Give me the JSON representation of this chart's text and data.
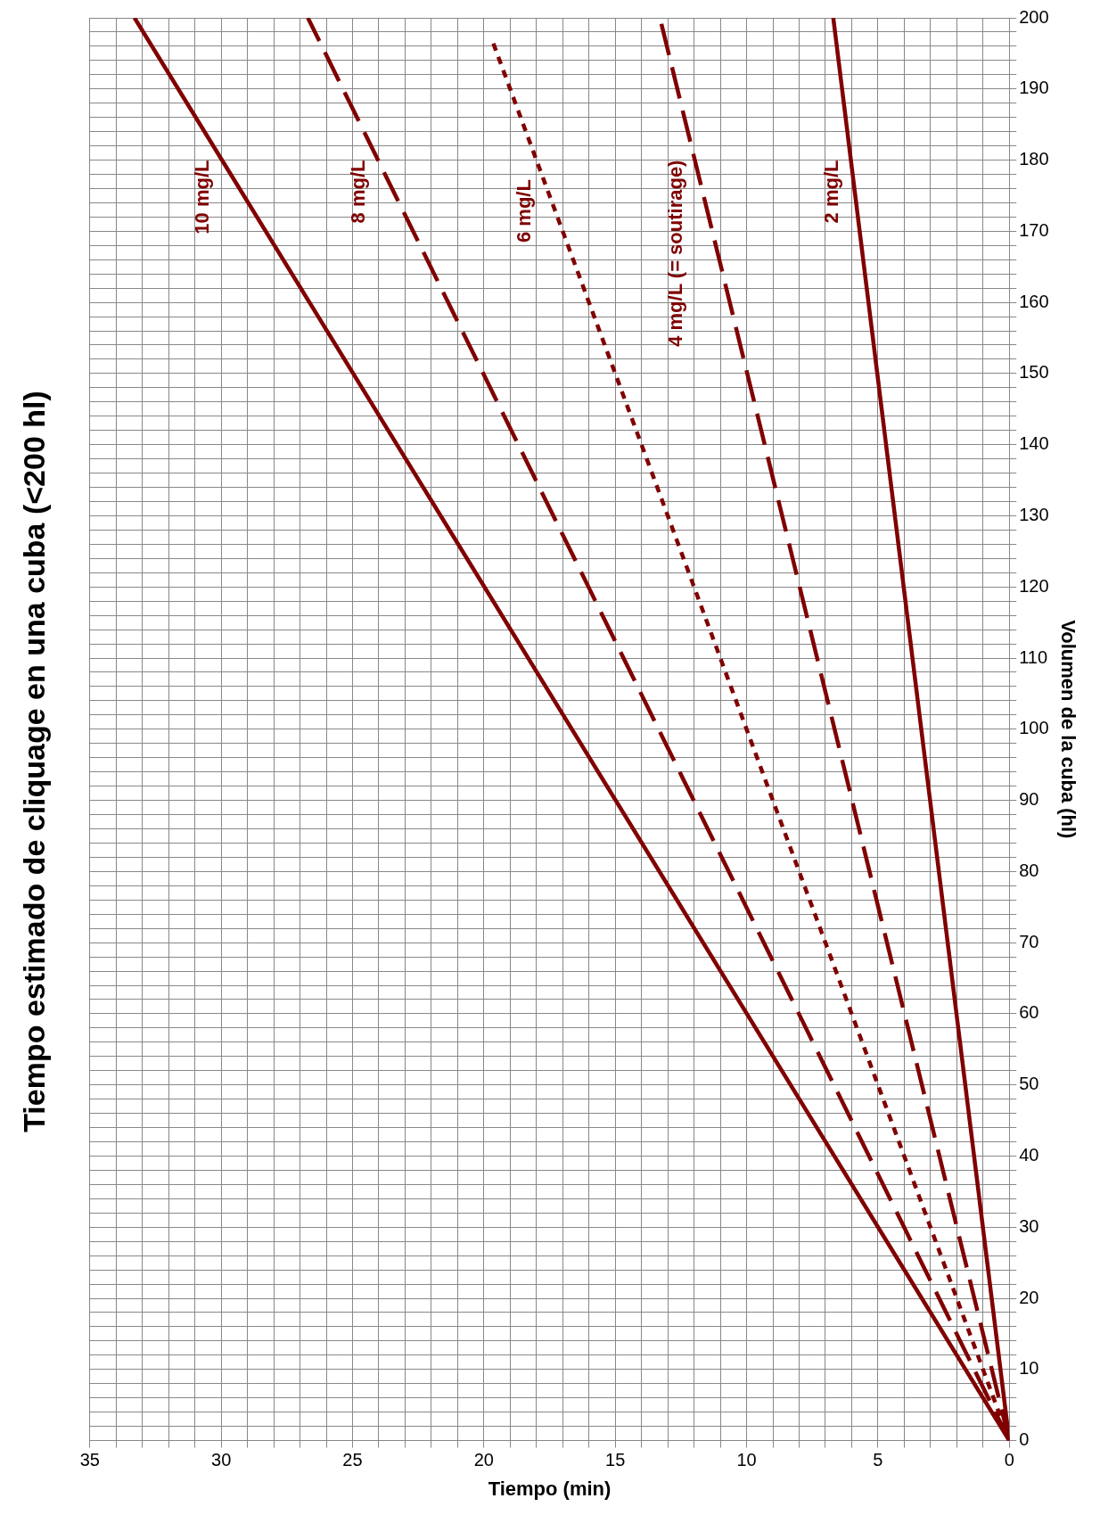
{
  "chart_data": {
    "type": "line",
    "title": "Tiempo estimado de cliquage en una cuba (<200 hl)",
    "xlabel": "Tiempo (min)",
    "ylabel": "Volumen de la cuba (hl)",
    "xlim": [
      35,
      0
    ],
    "ylim": [
      0,
      200
    ],
    "yticks": [
      0,
      {
        "value": 2,
        "label": null
      },
      {
        "value": 4,
        "label": null
      },
      {
        "value": 6,
        "label": null
      },
      {
        "value": 8,
        "label": null
      },
      10,
      {
        "value": 12,
        "label": null
      },
      {
        "value": 14,
        "label": null
      },
      {
        "value": 16,
        "label": null
      },
      {
        "value": 18,
        "label": null
      },
      20,
      {
        "value": 22,
        "label": null
      },
      {
        "value": 24,
        "label": null
      },
      {
        "value": 26,
        "label": null
      },
      {
        "value": 28,
        "label": null
      },
      30,
      {
        "value": 32,
        "label": null
      },
      {
        "value": 34,
        "label": null
      },
      {
        "value": 36,
        "label": null
      },
      {
        "value": 38,
        "label": null
      },
      40,
      {
        "value": 42,
        "label": null
      },
      {
        "value": 44,
        "label": null
      },
      {
        "value": 46,
        "label": null
      },
      {
        "value": 48,
        "label": null
      },
      50,
      {
        "value": 52,
        "label": null
      },
      {
        "value": 54,
        "label": null
      },
      {
        "value": 56,
        "label": null
      },
      {
        "value": 58,
        "label": null
      },
      60,
      {
        "value": 62,
        "label": null
      },
      {
        "value": 64,
        "label": null
      },
      {
        "value": 66,
        "label": null
      },
      {
        "value": 68,
        "label": null
      },
      70,
      {
        "value": 72,
        "label": null
      },
      {
        "value": 74,
        "label": null
      },
      {
        "value": 76,
        "label": null
      },
      {
        "value": 78,
        "label": null
      },
      80,
      {
        "value": 82,
        "label": null
      },
      {
        "value": 84,
        "label": null
      },
      {
        "value": 86,
        "label": null
      },
      {
        "value": 88,
        "label": null
      },
      90,
      {
        "value": 92,
        "label": null
      },
      {
        "value": 94,
        "label": null
      },
      {
        "value": 96,
        "label": null
      },
      {
        "value": 98,
        "label": null
      },
      100,
      {
        "value": 102,
        "label": null
      },
      {
        "value": 104,
        "label": null
      },
      {
        "value": 106,
        "label": null
      },
      {
        "value": 108,
        "label": null
      },
      110,
      {
        "value": 112,
        "label": null
      },
      {
        "value": 114,
        "label": null
      },
      {
        "value": 116,
        "label": null
      },
      {
        "value": 118,
        "label": null
      },
      120,
      {
        "value": 122,
        "label": null
      },
      {
        "value": 124,
        "label": null
      },
      {
        "value": 126,
        "label": null
      },
      {
        "value": 128,
        "label": null
      },
      130,
      {
        "value": 132,
        "label": null
      },
      {
        "value": 134,
        "label": null
      },
      {
        "value": 136,
        "label": null
      },
      {
        "value": 138,
        "label": null
      },
      140,
      {
        "value": 142,
        "label": null
      },
      {
        "value": 144,
        "label": null
      },
      {
        "value": 146,
        "label": null
      },
      {
        "value": 148,
        "label": null
      },
      150,
      {
        "value": 152,
        "label": null
      },
      {
        "value": 154,
        "label": null
      },
      {
        "value": 156,
        "label": null
      },
      {
        "value": 158,
        "label": null
      },
      160,
      {
        "value": 162,
        "label": null
      },
      {
        "value": 164,
        "label": null
      },
      {
        "value": 166,
        "label": null
      },
      {
        "value": 168,
        "label": null
      },
      170,
      {
        "value": 172,
        "label": null
      },
      {
        "value": 174,
        "label": null
      },
      {
        "value": 176,
        "label": null
      },
      {
        "value": 178,
        "label": null
      },
      180,
      {
        "value": 182,
        "label": null
      },
      {
        "value": 184,
        "label": null
      },
      {
        "value": 186,
        "label": null
      },
      {
        "value": 188,
        "label": null
      },
      190,
      {
        "value": 192,
        "label": null
      },
      {
        "value": 194,
        "label": null
      },
      {
        "value": 196,
        "label": null
      },
      {
        "value": 198,
        "label": null
      },
      200
    ],
    "xticks": [
      0,
      {
        "value": 1,
        "label": null
      },
      {
        "value": 2,
        "label": null
      },
      {
        "value": 3,
        "label": null
      },
      {
        "value": 4,
        "label": null
      },
      5,
      {
        "value": 6,
        "label": null
      },
      {
        "value": 7,
        "label": null
      },
      {
        "value": 8,
        "label": null
      },
      {
        "value": 9,
        "label": null
      },
      10,
      {
        "value": 11,
        "label": null
      },
      {
        "value": 12,
        "label": null
      },
      {
        "value": 13,
        "label": null
      },
      {
        "value": 14,
        "label": null
      },
      15,
      {
        "value": 16,
        "label": null
      },
      {
        "value": 17,
        "label": null
      },
      {
        "value": 18,
        "label": null
      },
      {
        "value": 19,
        "label": null
      },
      20,
      {
        "value": 21,
        "label": null
      },
      {
        "value": 22,
        "label": null
      },
      {
        "value": 23,
        "label": null
      },
      {
        "value": 24,
        "label": null
      },
      25,
      {
        "value": 26,
        "label": null
      },
      {
        "value": 27,
        "label": null
      },
      {
        "value": 28,
        "label": null
      },
      {
        "value": 29,
        "label": null
      },
      30,
      {
        "value": 31,
        "label": null
      },
      {
        "value": 32,
        "label": null
      },
      {
        "value": 33,
        "label": null
      },
      {
        "value": 34,
        "label": null
      },
      35
    ],
    "grid": true,
    "legend": false,
    "marker": "none",
    "series": [
      {
        "name": "10 mg/L",
        "color": "#800000",
        "line_style": "solid",
        "x": [
          0,
          33.3
        ],
        "values": [
          0,
          200
        ]
      },
      {
        "name": "8 mg/L",
        "color": "#800000",
        "line_style": "dashed",
        "x": [
          0,
          26.7
        ],
        "values": [
          0,
          200
        ]
      },
      {
        "name": "6 mg/L",
        "color": "#800000",
        "line_style": "dotted",
        "x": [
          0,
          19.7
        ],
        "values": [
          0,
          197
        ]
      },
      {
        "name": "4 mg/L (= soutirage)",
        "color": "#800000",
        "line_style": "dashed",
        "x": [
          0,
          13.3
        ],
        "values": [
          0,
          200
        ]
      },
      {
        "name": "2 mg/L",
        "color": "#800000",
        "line_style": "solid",
        "x": [
          0,
          6.7
        ],
        "values": [
          0,
          200
        ]
      }
    ]
  }
}
